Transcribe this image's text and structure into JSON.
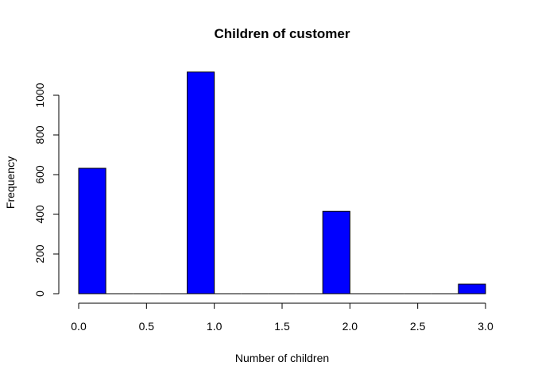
{
  "chart_data": {
    "type": "bar",
    "title": "Children of customer",
    "xlabel": "Number of children",
    "ylabel": "Frequency",
    "bar_color": "#0000ff",
    "xlim": [
      0,
      3
    ],
    "ylim": [
      0,
      1120
    ],
    "x_ticks": [
      "0.0",
      "0.5",
      "1.0",
      "1.5",
      "2.0",
      "2.5",
      "3.0"
    ],
    "y_ticks": [
      "0",
      "200",
      "400",
      "600",
      "800",
      "1000"
    ],
    "bins": [
      {
        "start": 0.0,
        "end": 0.2,
        "value": 632
      },
      {
        "start": 0.2,
        "end": 0.4,
        "value": 0
      },
      {
        "start": 0.4,
        "end": 0.6,
        "value": 0
      },
      {
        "start": 0.6,
        "end": 0.8,
        "value": 0
      },
      {
        "start": 0.8,
        "end": 1.0,
        "value": 1117
      },
      {
        "start": 1.0,
        "end": 1.2,
        "value": 0
      },
      {
        "start": 1.2,
        "end": 1.4,
        "value": 0
      },
      {
        "start": 1.4,
        "end": 1.6,
        "value": 0
      },
      {
        "start": 1.6,
        "end": 1.8,
        "value": 0
      },
      {
        "start": 1.8,
        "end": 2.0,
        "value": 415
      },
      {
        "start": 2.0,
        "end": 2.2,
        "value": 0
      },
      {
        "start": 2.2,
        "end": 2.4,
        "value": 0
      },
      {
        "start": 2.4,
        "end": 2.6,
        "value": 0
      },
      {
        "start": 2.6,
        "end": 2.8,
        "value": 0
      },
      {
        "start": 2.8,
        "end": 3.0,
        "value": 48
      }
    ]
  }
}
